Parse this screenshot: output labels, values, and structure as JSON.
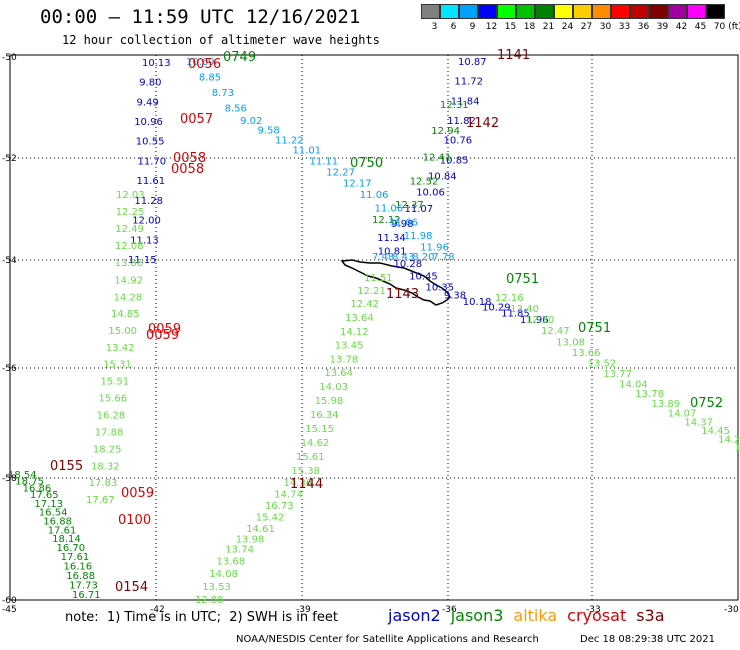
{
  "header": {
    "title": "00:00 – 11:59 UTC 12/16/2021",
    "subtitle": "12 hour collection of altimeter wave heights"
  },
  "legend": {
    "unit_label": "(ft)",
    "bins": [
      {
        "label": "3",
        "color": "#808080"
      },
      {
        "label": "6",
        "color": "#00e5ff"
      },
      {
        "label": "9",
        "color": "#00a0ff"
      },
      {
        "label": "12",
        "color": "#0000ff"
      },
      {
        "label": "15",
        "color": "#00ff00"
      },
      {
        "label": "18",
        "color": "#00c000"
      },
      {
        "label": "21",
        "color": "#008000"
      },
      {
        "label": "24",
        "color": "#ffff00"
      },
      {
        "label": "27",
        "color": "#ffcc00"
      },
      {
        "label": "30",
        "color": "#ff8c00"
      },
      {
        "label": "33",
        "color": "#ff0000"
      },
      {
        "label": "36",
        "color": "#c00000"
      },
      {
        "label": "39",
        "color": "#800000"
      },
      {
        "label": "42",
        "color": "#a000a0"
      },
      {
        "label": "45",
        "color": "#ff00ff"
      },
      {
        "label": "70",
        "color": "#000000"
      }
    ]
  },
  "axes": {
    "lat_labels": [
      "-50",
      "-52",
      "-54",
      "-56",
      "-58",
      "-60"
    ],
    "lon_labels": [
      "-45",
      "-42",
      "-39",
      "-36",
      "-33",
      "-30"
    ]
  },
  "colors": {
    "jason2": "#0000cc",
    "jason3": "#008800",
    "altika": "#ff9900",
    "cryosat": "#dd0000",
    "s3a": "#800000",
    "swh_low": "#00a0ff",
    "swh_mid": "#0000cc",
    "swh_green": "#66dd44",
    "swh_dkgreen": "#00aa00",
    "grid": "#000000"
  },
  "tracks": [
    {
      "name": "track-jason2",
      "color": "#0000cc",
      "labels": [
        "10.87",
        "11.72",
        "11.84",
        "11.82",
        "10.76",
        "10.85",
        "10.84",
        "10.06",
        "11.07",
        "9.98",
        "11.34",
        "10.81",
        "10.28",
        "10.45",
        "10.35",
        "9.38",
        "10.18",
        "10.29",
        "11.85",
        "11.96"
      ]
    },
    {
      "name": "track-jason3",
      "color": "#008800",
      "labels": [
        "12.31",
        "12.94",
        "12.41",
        "12.52",
        "12.37",
        "12.12"
      ]
    },
    {
      "name": "track-ascending-green",
      "color": "#66dd44",
      "labels": [
        "11.51",
        "12.21",
        "12.42",
        "13.64",
        "14.12",
        "13.45",
        "13.78",
        "13.64",
        "14.03",
        "15.98",
        "16.34",
        "15.15",
        "14.62",
        "15.61",
        "15.38",
        "14.36",
        "14.74",
        "16.73",
        "15.42",
        "14.61",
        "13.98",
        "13.74",
        "13.68",
        "14.08",
        "13.53",
        "12.88"
      ]
    },
    {
      "name": "track-diagonal",
      "color": "#00a0ff",
      "labels": [
        "10.69",
        "8.85",
        "8.73",
        "8.56",
        "9.02",
        "9.58",
        "11.22",
        "11.01",
        "11.11",
        "12.27",
        "12.17",
        "11.06",
        "11.06",
        "11.66",
        "11.98",
        "11.96",
        "7.78",
        "8.20",
        "8.43",
        "7.48"
      ]
    },
    {
      "name": "track-southeast",
      "color": "#66dd44",
      "labels": [
        "12.16",
        "13.40",
        "12.30",
        "12.47",
        "13.08",
        "13.66",
        "13.52",
        "13.77",
        "14.04",
        "13.78",
        "13.89",
        "14.07",
        "14.37",
        "14.45",
        "14.22",
        "14.4"
      ]
    },
    {
      "name": "track-left-1",
      "color": "#0000cc",
      "labels": [
        "10.13",
        "9.80",
        "9.49",
        "10.96",
        "10.55",
        "11.70",
        "11.61",
        "11.28",
        "12.00",
        "11.13",
        "11.15"
      ]
    },
    {
      "name": "track-left-2",
      "color": "#66dd44",
      "labels": [
        "12.03",
        "12.25",
        "12.49",
        "12.08",
        "13.86",
        "14.92",
        "14.28",
        "14.85",
        "15.00",
        "13.42",
        "15.31",
        "15.51",
        "15.66",
        "16.28",
        "17.88",
        "18.25",
        "18.32",
        "17.83",
        "17.67"
      ]
    },
    {
      "name": "track-left-3",
      "color": "#008800",
      "labels": [
        "18.54",
        "18.75",
        "16.86",
        "17.65",
        "17.13",
        "16.54",
        "16.88",
        "17.61",
        "18.14",
        "16.70",
        "17.61",
        "16.16",
        "16.88",
        "17.73",
        "16.71"
      ]
    }
  ],
  "passes": [
    {
      "label": "0749",
      "color": "#008800"
    },
    {
      "label": "0056",
      "color": "#dd0000"
    },
    {
      "label": "0057",
      "color": "#dd0000"
    },
    {
      "label": "0058",
      "color": "#dd0000"
    },
    {
      "label": "0058",
      "color": "#dd0000"
    },
    {
      "label": "0059",
      "color": "#dd0000"
    },
    {
      "label": "0059",
      "color": "#dd0000"
    },
    {
      "label": "0059",
      "color": "#dd0000"
    },
    {
      "label": "0100",
      "color": "#dd0000"
    },
    {
      "label": "0154",
      "color": "#800000"
    },
    {
      "label": "0155",
      "color": "#800000"
    },
    {
      "label": "0750",
      "color": "#008800"
    },
    {
      "label": "0751",
      "color": "#008800"
    },
    {
      "label": "0751",
      "color": "#008800"
    },
    {
      "label": "0752",
      "color": "#008800"
    },
    {
      "label": "1141",
      "color": "#800000"
    },
    {
      "label": "1142",
      "color": "#800000"
    },
    {
      "label": "1143",
      "color": "#800000"
    },
    {
      "label": "1144",
      "color": "#800000"
    }
  ],
  "footer": {
    "note": "note:  1) Time is in UTC;  2) SWH is in feet",
    "satellites": [
      {
        "name": "jason2",
        "color": "#0000cc"
      },
      {
        "name": "jason3",
        "color": "#008800"
      },
      {
        "name": "altika",
        "color": "#ff9900"
      },
      {
        "name": "cryosat",
        "color": "#dd0000"
      },
      {
        "name": "s3a",
        "color": "#800000"
      }
    ],
    "credit": "NOAA/NESDIS Center for Satellite Applications and Research",
    "timestamp": "Dec 18 08:29:38 UTC 2021"
  }
}
